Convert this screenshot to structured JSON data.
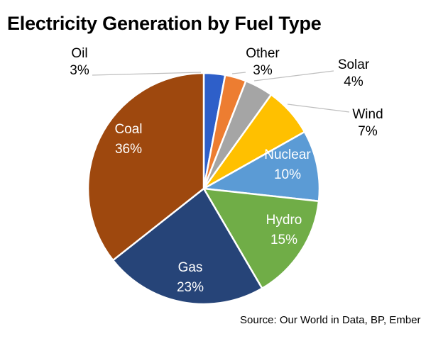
{
  "chart_data": {
    "type": "pie",
    "title": "Electricity Generation by Fuel Type",
    "slices": [
      {
        "label": "Oil",
        "value": 3,
        "value_label": "3%",
        "color": "#2e5fc9"
      },
      {
        "label": "Other",
        "value": 3,
        "value_label": "3%",
        "color": "#ed7d31"
      },
      {
        "label": "Solar",
        "value": 4,
        "value_label": "4%",
        "color": "#a5a5a5"
      },
      {
        "label": "Wind",
        "value": 7,
        "value_label": "7%",
        "color": "#ffc000"
      },
      {
        "label": "Nuclear",
        "value": 10,
        "value_label": "10%",
        "color": "#5b9bd5"
      },
      {
        "label": "Hydro",
        "value": 15,
        "value_label": "15%",
        "color": "#70ad47"
      },
      {
        "label": "Gas",
        "value": 23,
        "value_label": "23%",
        "color": "#264478"
      },
      {
        "label": "Coal",
        "value": 36,
        "value_label": "36%",
        "color": "#9e480e"
      }
    ],
    "start_angle": "top (12 o'clock), clockwise",
    "label_color": "#000000",
    "inner_label_color": "#ffffff",
    "source": "Source: Our World in Data, BP, Ember"
  }
}
